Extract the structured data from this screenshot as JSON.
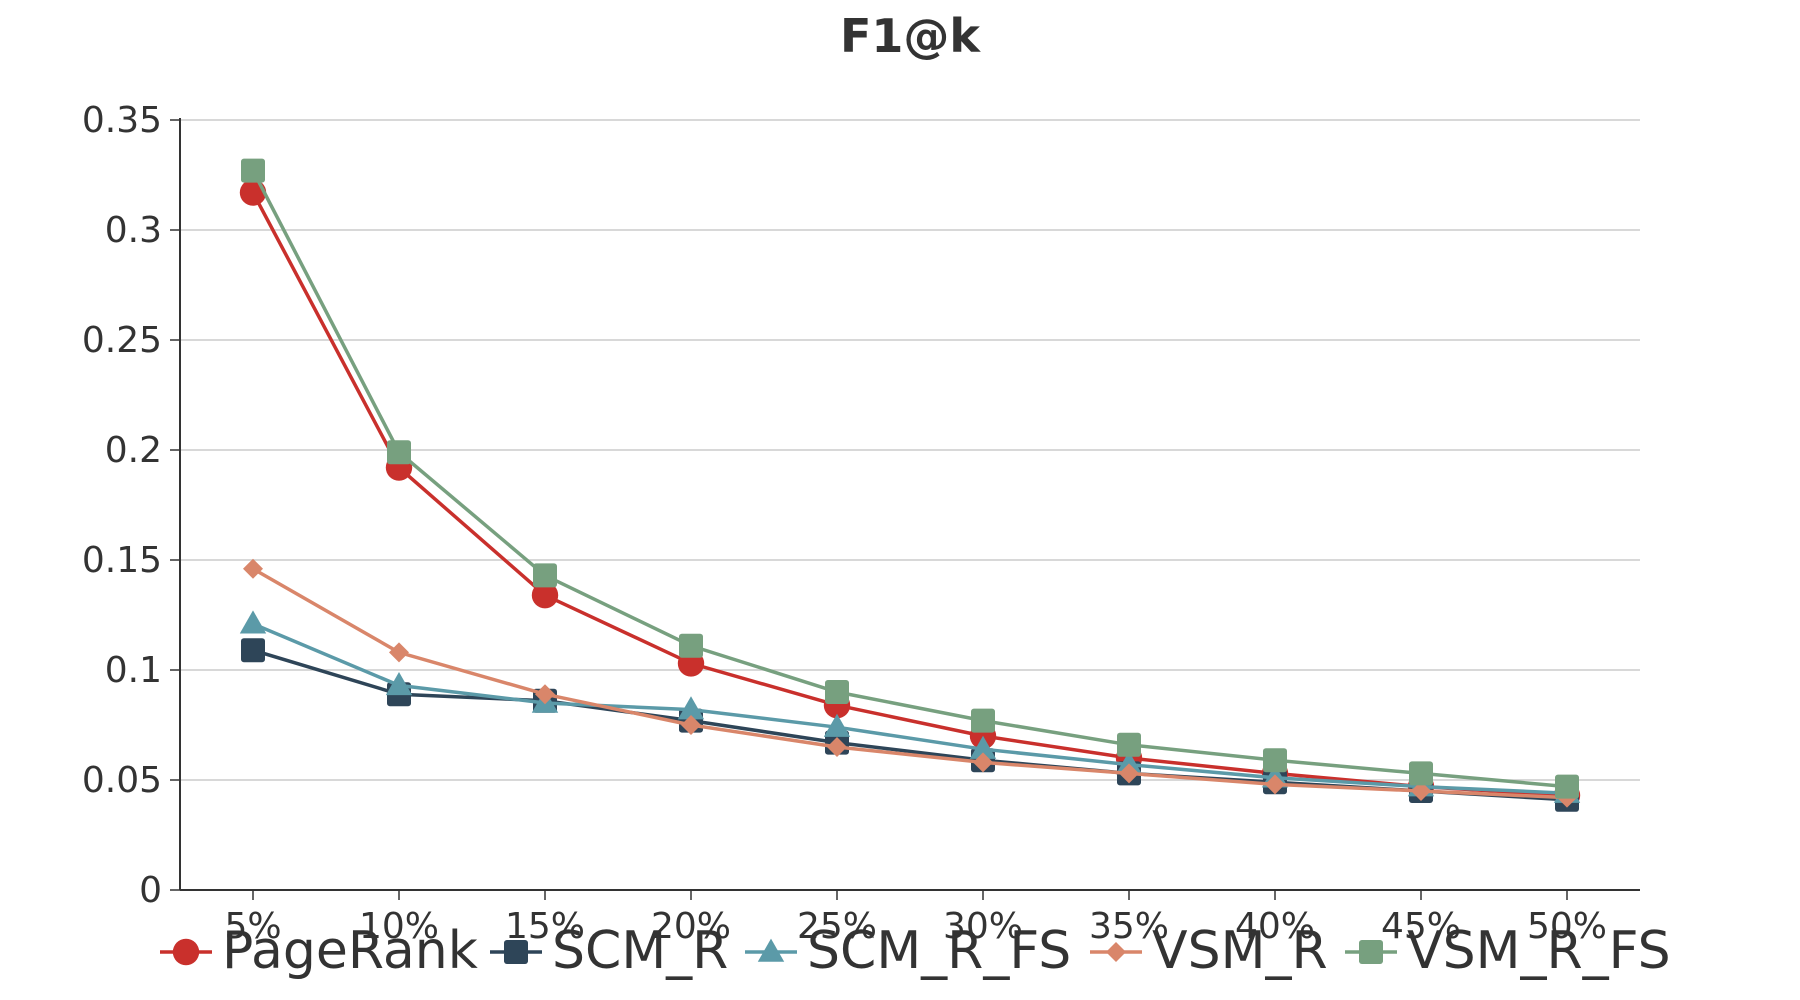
{
  "chart_data": {
    "type": "line",
    "title": "F1@k",
    "xlabel": "",
    "ylabel": "",
    "categories": [
      "5%",
      "10%",
      "15%",
      "20%",
      "25%",
      "30%",
      "35%",
      "40%",
      "45%",
      "50%"
    ],
    "ylim": [
      0,
      0.35
    ],
    "yticks": [
      0,
      0.05,
      0.1,
      0.15,
      0.2,
      0.25,
      0.3,
      0.35
    ],
    "ytick_labels": [
      "0",
      "0.05",
      "0.1",
      "0.15",
      "0.2",
      "0.25",
      "0.3",
      "0.35"
    ],
    "grid": true,
    "legend_position": "bottom",
    "series": [
      {
        "name": "PageRank",
        "color": "#c9302c",
        "marker": "circle",
        "values": [
          0.317,
          0.192,
          0.134,
          0.103,
          0.084,
          0.07,
          0.06,
          0.053,
          0.047,
          0.043
        ]
      },
      {
        "name": "SCM_R",
        "color": "#2e4558",
        "marker": "square",
        "values": [
          0.109,
          0.089,
          0.086,
          0.077,
          0.067,
          0.059,
          0.053,
          0.049,
          0.045,
          0.041
        ]
      },
      {
        "name": "SCM_R_FS",
        "color": "#5b9aa8",
        "marker": "triangle",
        "values": [
          0.121,
          0.093,
          0.085,
          0.082,
          0.074,
          0.064,
          0.057,
          0.051,
          0.047,
          0.044
        ]
      },
      {
        "name": "VSM_R",
        "color": "#d9866a",
        "marker": "diamond",
        "values": [
          0.146,
          0.108,
          0.089,
          0.075,
          0.065,
          0.058,
          0.053,
          0.048,
          0.045,
          0.042
        ]
      },
      {
        "name": "VSM_R_FS",
        "color": "#77a07f",
        "marker": "square",
        "values": [
          0.327,
          0.199,
          0.143,
          0.111,
          0.09,
          0.077,
          0.066,
          0.059,
          0.053,
          0.047
        ]
      }
    ]
  }
}
